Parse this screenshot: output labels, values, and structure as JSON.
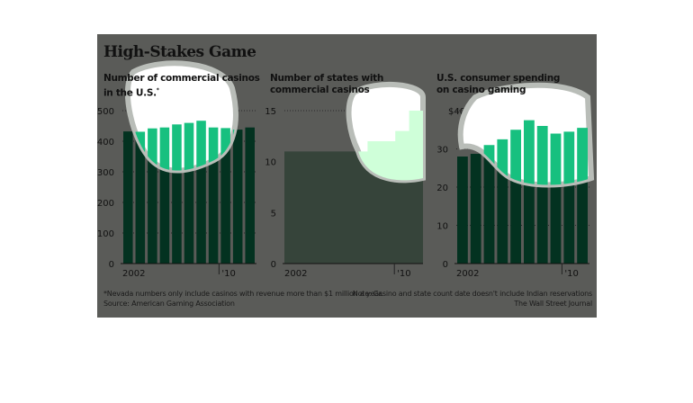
{
  "title": "High-Stakes Game",
  "footnote": "*Nevada numbers only include casinos with revenue more than $1 million a year.",
  "source": "Source: American Gaming Association",
  "note": "Note: Casino and state count date doesn't include Indian reservations",
  "credit": "The Wall Street Journal",
  "colors": {
    "panel": "#5a5b58",
    "bar": "#033220",
    "highlight": "#17c07f",
    "area": "#36443a",
    "area_highlight": "#cfffd9"
  },
  "chart_data": [
    {
      "type": "bar",
      "title": "Number of commercial casinos in the U.S.",
      "title_lines": [
        "Number of commercial casinos",
        "in the U.S."
      ],
      "marker": "*",
      "x": [
        2002,
        2003,
        2004,
        2005,
        2006,
        2007,
        2008,
        2009,
        2010,
        2011,
        2012
      ],
      "values": [
        432,
        431,
        442,
        445,
        455,
        460,
        467,
        445,
        443,
        438,
        445
      ],
      "ylim": [
        0,
        500
      ],
      "yticks": [
        0,
        100,
        200,
        300,
        400,
        500
      ],
      "ytick_labels": [
        "0",
        "100",
        "200",
        "300",
        "400",
        "500"
      ],
      "xtick_labels": [
        "2002",
        "'10"
      ]
    },
    {
      "type": "area",
      "title": "Number of states with commercial casinos",
      "title_lines": [
        "Number of states with",
        "commercial casinos"
      ],
      "x": [
        2002,
        2003,
        2004,
        2005,
        2006,
        2007,
        2008,
        2009,
        2010,
        2011
      ],
      "values": [
        11,
        11,
        11,
        11,
        11,
        11,
        12,
        12,
        13,
        15
      ],
      "ylim": [
        0,
        15
      ],
      "yticks": [
        0,
        5,
        10,
        15
      ],
      "ytick_labels": [
        "0",
        "5",
        "10",
        "15"
      ],
      "xtick_labels": [
        "2002",
        "'10"
      ]
    },
    {
      "type": "bar",
      "title": "U.S. consumer spending on casino gaming",
      "title_lines": [
        "U.S. consumer spending",
        "on casino gaming"
      ],
      "x": [
        2002,
        2003,
        2004,
        2005,
        2006,
        2007,
        2008,
        2009,
        2010,
        2011
      ],
      "values": [
        28,
        28.7,
        31,
        32.5,
        35,
        37.5,
        36,
        34,
        34.5,
        35.5
      ],
      "ylim": [
        0,
        40
      ],
      "yticks": [
        0,
        10,
        20,
        30,
        40
      ],
      "ytick_labels": [
        "0",
        "10",
        "20",
        "30",
        "$40 billion"
      ],
      "xtick_labels": [
        "2002",
        "'10"
      ]
    }
  ]
}
